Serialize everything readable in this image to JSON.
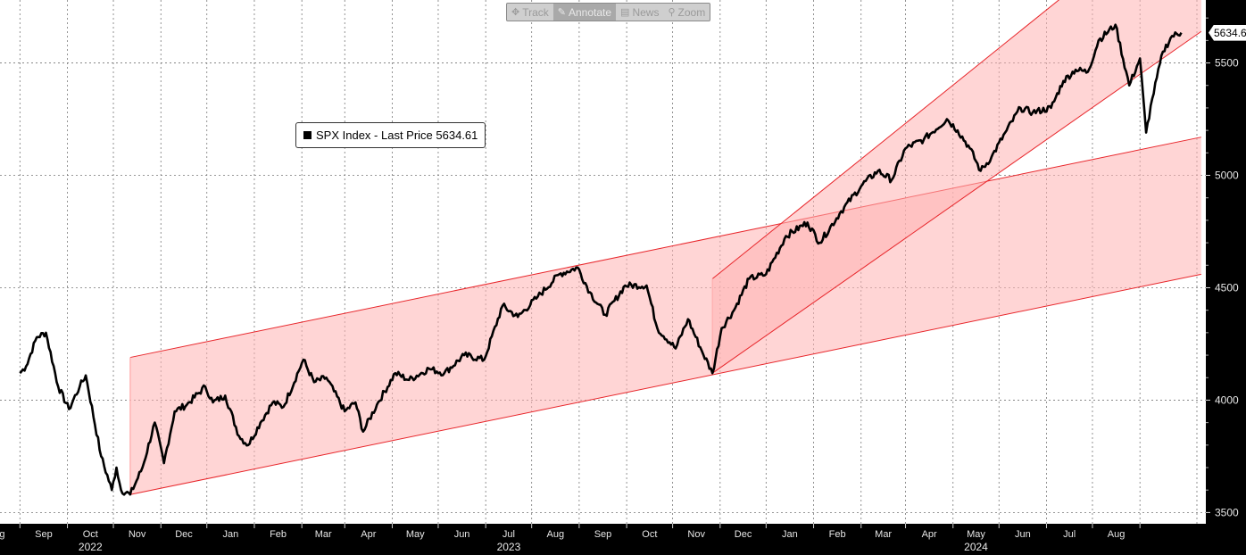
{
  "toolbar": {
    "track": "Track",
    "annotate": "Annotate",
    "news": "News",
    "zoom": "Zoom"
  },
  "legend": {
    "label": "SPX Index - Last Price 5634.61"
  },
  "last_price_tag": "5634.6",
  "colors": {
    "background": "#ffffff",
    "line": "#000000",
    "channel_fill": "#ffb3b3",
    "channel_line": "#e8262b",
    "frame": "#000000"
  },
  "chart_data": {
    "type": "line",
    "series": [
      {
        "name": "SPX Index - Last Price",
        "values": []
      }
    ],
    "x_range": [
      "2022-08-01",
      "2024-08-30"
    ],
    "x_points": [
      "2022-08-01",
      "2022-08-05",
      "2022-08-12",
      "2022-08-18",
      "2022-08-26",
      "2022-09-02",
      "2022-09-09",
      "2022-09-13",
      "2022-09-23",
      "2022-09-30",
      "2022-10-03",
      "2022-10-06",
      "2022-10-12",
      "2022-10-20",
      "2022-10-28",
      "2022-11-03",
      "2022-11-10",
      "2022-11-18",
      "2022-11-30",
      "2022-12-05",
      "2022-12-13",
      "2022-12-22",
      "2022-12-28",
      "2023-01-05",
      "2023-01-13",
      "2023-01-20",
      "2023-02-02",
      "2023-02-09",
      "2023-02-17",
      "2023-03-01",
      "2023-03-08",
      "2023-03-13",
      "2023-03-22",
      "2023-04-03",
      "2023-04-12",
      "2023-04-25",
      "2023-05-05",
      "2023-05-18",
      "2023-05-31",
      "2023-06-12",
      "2023-06-22",
      "2023-07-05",
      "2023-07-19",
      "2023-07-31",
      "2023-08-08",
      "2023-08-18",
      "2023-08-31",
      "2023-09-14",
      "2023-09-21",
      "2023-10-03",
      "2023-10-11",
      "2023-10-20",
      "2023-10-27",
      "2023-11-02",
      "2023-11-10",
      "2023-11-20",
      "2023-12-01",
      "2023-12-14",
      "2023-12-28",
      "2024-01-05",
      "2024-01-19",
      "2024-02-02",
      "2024-02-12",
      "2024-02-21",
      "2024-03-01",
      "2024-03-13",
      "2024-03-28",
      "2024-04-04",
      "2024-04-12",
      "2024-04-19",
      "2024-04-26",
      "2024-05-06",
      "2024-05-15",
      "2024-05-23",
      "2024-06-04",
      "2024-06-12",
      "2024-06-20",
      "2024-06-28",
      "2024-07-05",
      "2024-07-16",
      "2024-07-25",
      "2024-08-01",
      "2024-08-05",
      "2024-08-09",
      "2024-08-16",
      "2024-08-22",
      "2024-08-28"
    ],
    "y_points": [
      4120,
      4150,
      4280,
      4300,
      4060,
      3960,
      4060,
      4110,
      3750,
      3600,
      3700,
      3600,
      3580,
      3700,
      3900,
      3720,
      3950,
      3980,
      4060,
      3990,
      4020,
      3840,
      3800,
      3900,
      3990,
      3970,
      4180,
      4080,
      4100,
      3950,
      3990,
      3860,
      3980,
      4120,
      4090,
      4140,
      4120,
      4200,
      4180,
      4420,
      4370,
      4460,
      4560,
      4590,
      4480,
      4380,
      4510,
      4510,
      4320,
      4230,
      4360,
      4220,
      4120,
      4320,
      4400,
      4540,
      4560,
      4730,
      4790,
      4700,
      4840,
      4960,
      5020,
      4980,
      5120,
      5160,
      5250,
      5200,
      5120,
      5020,
      5080,
      5200,
      5300,
      5280,
      5300,
      5420,
      5470,
      5460,
      5600,
      5670,
      5400,
      5520,
      5190,
      5340,
      5550,
      5620,
      5634.61
    ],
    "yticks": [
      3500,
      4000,
      4500,
      5000,
      5500
    ],
    "ylim": [
      3450,
      5780
    ],
    "xticks_month": [
      "Aug",
      "Sep",
      "Oct",
      "Nov",
      "Dec",
      "Jan",
      "Feb",
      "Mar",
      "Apr",
      "May",
      "Jun",
      "Jul",
      "Aug",
      "Sep",
      "Oct",
      "Nov",
      "Dec",
      "Jan",
      "Feb",
      "Mar",
      "Apr",
      "May",
      "Jun",
      "Jul",
      "Aug"
    ],
    "xticks_year": [
      "2022",
      "2023",
      "2024"
    ],
    "channels": [
      {
        "points": [
          [
            "2022-10-12",
            3580
          ],
          [
            "2024-09-10",
            4560
          ],
          [
            "2024-09-10",
            5170
          ],
          [
            "2022-10-12",
            4190
          ]
        ]
      },
      {
        "points": [
          [
            "2023-10-27",
            4120
          ],
          [
            "2024-09-10",
            5640
          ],
          [
            "2024-09-10",
            6290
          ],
          [
            "2023-10-27",
            4540
          ]
        ]
      }
    ],
    "grid": true,
    "legend_position": "top-left"
  }
}
